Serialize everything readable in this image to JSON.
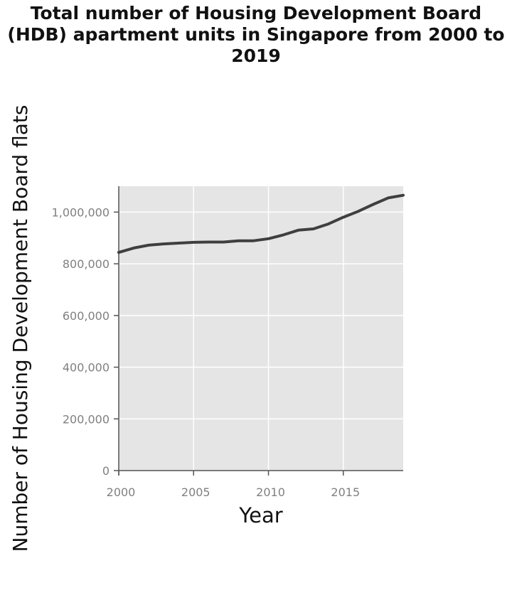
{
  "chart_data": {
    "type": "line",
    "title": "Total number of Housing Development Board (HDB) apartment units in Singapore from 2000 to 2019",
    "xlabel": "Year",
    "ylabel": "Number of Housing Development Board flats",
    "xlim": [
      2000,
      2019
    ],
    "ylim": [
      0,
      1100000
    ],
    "x_ticks": [
      2000,
      2005,
      2010,
      2015
    ],
    "y_ticks": [
      0,
      200000,
      400000,
      600000,
      800000,
      1000000
    ],
    "x_tick_labels": [
      "2000",
      "2005",
      "2010",
      "2015"
    ],
    "y_tick_labels": [
      "0",
      "200,000",
      "400,000",
      "600,000",
      "800,000",
      "1,000,000"
    ],
    "grid": true,
    "background": "#e5e5e5",
    "line_color": "#3f3f3f",
    "series": [
      {
        "x": [
          2000,
          2001,
          2002,
          2003,
          2004,
          2005,
          2006,
          2007,
          2008,
          2009,
          2010,
          2011,
          2012,
          2013,
          2014,
          2015,
          2016,
          2017,
          2018,
          2019
        ],
        "values": [
          844000,
          861000,
          872000,
          877000,
          880000,
          883000,
          884000,
          884000,
          889000,
          889000,
          897000,
          912000,
          930000,
          935000,
          954000,
          980000,
          1003000,
          1030000,
          1055000,
          1065000
        ]
      }
    ]
  }
}
